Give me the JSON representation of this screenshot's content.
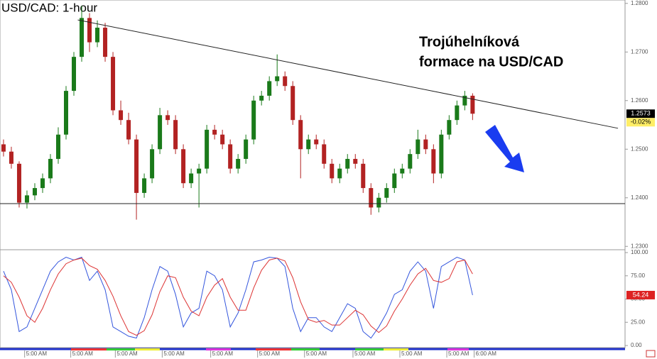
{
  "chart_data": {
    "type": "candlestick",
    "title": "USD/CAD: 1-hour",
    "annotation": [
      "Trojúhelníková",
      "formace na USD/CAD"
    ],
    "ohlc": [
      [
        1.251,
        1.252,
        1.2485,
        1.2495
      ],
      [
        1.2495,
        1.2505,
        1.246,
        1.247
      ],
      [
        1.247,
        1.2475,
        1.238,
        1.239
      ],
      [
        1.239,
        1.2415,
        1.2378,
        1.2405
      ],
      [
        1.2405,
        1.243,
        1.2395,
        1.242
      ],
      [
        1.242,
        1.245,
        1.241,
        1.244
      ],
      [
        1.244,
        1.249,
        1.243,
        1.248
      ],
      [
        1.248,
        1.2545,
        1.247,
        1.253
      ],
      [
        1.253,
        1.263,
        1.252,
        1.262
      ],
      [
        1.262,
        1.27,
        1.261,
        1.269
      ],
      [
        1.269,
        1.2795,
        1.268,
        1.277
      ],
      [
        1.277,
        1.278,
        1.27,
        1.272
      ],
      [
        1.272,
        1.2765,
        1.271,
        1.275
      ],
      [
        1.275,
        1.276,
        1.268,
        1.269
      ],
      [
        1.269,
        1.27,
        1.257,
        1.258
      ],
      [
        1.258,
        1.26,
        1.255,
        1.256
      ],
      [
        1.256,
        1.2575,
        1.251,
        1.252
      ],
      [
        1.252,
        1.253,
        1.2355,
        1.241
      ],
      [
        1.241,
        1.245,
        1.24,
        1.244
      ],
      [
        1.244,
        1.251,
        1.243,
        1.25
      ],
      [
        1.25,
        1.2585,
        1.249,
        1.257
      ],
      [
        1.257,
        1.258,
        1.255,
        1.256
      ],
      [
        1.256,
        1.257,
        1.249,
        1.25
      ],
      [
        1.25,
        1.251,
        1.242,
        1.243
      ],
      [
        1.243,
        1.246,
        1.242,
        1.245
      ],
      [
        1.245,
        1.247,
        1.238,
        1.246
      ],
      [
        1.246,
        1.255,
        1.245,
        1.254
      ],
      [
        1.254,
        1.255,
        1.252,
        1.253
      ],
      [
        1.253,
        1.254,
        1.25,
        1.251
      ],
      [
        1.251,
        1.252,
        1.245,
        1.246
      ],
      [
        1.246,
        1.249,
        1.245,
        1.248
      ],
      [
        1.248,
        1.253,
        1.247,
        1.252
      ],
      [
        1.252,
        1.261,
        1.251,
        1.26
      ],
      [
        1.26,
        1.262,
        1.259,
        1.261
      ],
      [
        1.261,
        1.265,
        1.26,
        1.264
      ],
      [
        1.264,
        1.2695,
        1.263,
        1.265
      ],
      [
        1.265,
        1.266,
        1.262,
        1.263
      ],
      [
        1.263,
        1.264,
        1.255,
        1.256
      ],
      [
        1.256,
        1.257,
        1.244,
        1.25
      ],
      [
        1.25,
        1.253,
        1.249,
        1.252
      ],
      [
        1.252,
        1.253,
        1.25,
        1.251
      ],
      [
        1.251,
        1.252,
        1.246,
        1.247
      ],
      [
        1.247,
        1.248,
        1.243,
        1.244
      ],
      [
        1.244,
        1.247,
        1.243,
        1.246
      ],
      [
        1.246,
        1.249,
        1.245,
        1.248
      ],
      [
        1.248,
        1.249,
        1.246,
        1.247
      ],
      [
        1.247,
        1.248,
        1.241,
        1.242
      ],
      [
        1.242,
        1.243,
        1.2365,
        1.238
      ],
      [
        1.238,
        1.241,
        1.237,
        1.24
      ],
      [
        1.24,
        1.243,
        1.239,
        1.242
      ],
      [
        1.242,
        1.246,
        1.241,
        1.245
      ],
      [
        1.245,
        1.247,
        1.244,
        1.246
      ],
      [
        1.246,
        1.25,
        1.245,
        1.249
      ],
      [
        1.249,
        1.254,
        1.248,
        1.252
      ],
      [
        1.252,
        1.253,
        1.249,
        1.25
      ],
      [
        1.25,
        1.251,
        1.243,
        1.245
      ],
      [
        1.245,
        1.254,
        1.244,
        1.253
      ],
      [
        1.253,
        1.257,
        1.252,
        1.256
      ],
      [
        1.256,
        1.26,
        1.255,
        1.259
      ],
      [
        1.259,
        1.262,
        1.258,
        1.261
      ],
      [
        1.261,
        1.2615,
        1.256,
        1.2573
      ]
    ],
    "up_color": "#1a7a1a",
    "down_color": "#b22222",
    "xlim": [
      -0.45,
      79.5
    ],
    "xticks": [
      {
        "value": 2.7,
        "label": "5:00 AM"
      },
      {
        "value": 8.6,
        "label": "5:00 AM"
      },
      {
        "value": 14.3,
        "label": "5:00 AM"
      },
      {
        "value": 20.3,
        "label": "5:00 AM"
      },
      {
        "value": 26.5,
        "label": "5:00 AM"
      },
      {
        "value": 32.5,
        "label": "5:00 AM"
      },
      {
        "value": 38.5,
        "label": "5:00 AM"
      },
      {
        "value": 44.7,
        "label": "5:00 AM"
      },
      {
        "value": 50.7,
        "label": "5:00 AM"
      },
      {
        "value": 56.7,
        "label": "5:00 AM"
      },
      {
        "value": 60.2,
        "label": "6:00 AM"
      }
    ],
    "ylim": [
      1.2296,
      1.2807
    ],
    "yticks": [
      {
        "value": 1.23,
        "label": "1.2300"
      },
      {
        "value": 1.24,
        "label": "1.2400"
      },
      {
        "value": 1.25,
        "label": "1.2500"
      },
      {
        "value": 1.26,
        "label": "1.2600"
      },
      {
        "value": 1.27,
        "label": "1.2700"
      },
      {
        "value": 1.28,
        "label": "1.2800"
      }
    ],
    "last_price": {
      "value": 1.2573,
      "label": "1.2573",
      "change": -0.02,
      "change_label": "-0.02%"
    },
    "resistance": {
      "x": [
        9.5,
        78.6
      ],
      "y": [
        1.2766,
        1.2543
      ]
    },
    "support": 1.2388,
    "oscillator": {
      "ylim": [
        0,
        100
      ],
      "yticks": [
        {
          "value": 0,
          "label": "0.00"
        },
        {
          "value": 25,
          "label": "25.00"
        },
        {
          "value": 50,
          "label": "50.00"
        },
        {
          "value": 75,
          "label": "75.00"
        },
        {
          "value": 100,
          "label": "100.00"
        }
      ],
      "series": [
        {
          "color": "#3355dd",
          "values": [
            80,
            60,
            15,
            20,
            40,
            60,
            80,
            90,
            95,
            92,
            95,
            70,
            80,
            60,
            20,
            15,
            10,
            8,
            30,
            60,
            85,
            80,
            55,
            20,
            35,
            40,
            80,
            75,
            60,
            20,
            35,
            60,
            90,
            92,
            95,
            94,
            85,
            40,
            15,
            30,
            30,
            20,
            15,
            30,
            45,
            40,
            15,
            8,
            20,
            35,
            55,
            60,
            80,
            90,
            80,
            40,
            85,
            90,
            95,
            92,
            54.24
          ],
          "value_labels": [
            null,
            null,
            null,
            null,
            null,
            null,
            null,
            null,
            null,
            null,
            null,
            null,
            null,
            null,
            null,
            null,
            null,
            null,
            null,
            null,
            null,
            null,
            null,
            null,
            null,
            null,
            null,
            null,
            null,
            null,
            null,
            null,
            null,
            null,
            null,
            null,
            null,
            null,
            null,
            null,
            null,
            null,
            null,
            null,
            null,
            null,
            null,
            null,
            null,
            null,
            null,
            null,
            null,
            null,
            null,
            null,
            null,
            null,
            null,
            null,
            "54.24"
          ]
        },
        {
          "color": "#dd3333",
          "values": [
            75,
            68,
            52,
            32,
            25,
            40,
            60,
            77,
            88,
            92,
            94,
            86,
            82,
            70,
            53,
            32,
            15,
            11,
            16,
            33,
            58,
            75,
            73,
            52,
            37,
            32,
            52,
            65,
            72,
            52,
            38,
            38,
            62,
            81,
            92,
            94,
            91,
            73,
            47,
            28,
            25,
            27,
            22,
            22,
            30,
            38,
            33,
            21,
            14,
            21,
            37,
            50,
            65,
            77,
            83,
            70,
            68,
            72,
            90,
            92,
            77
          ]
        }
      ]
    }
  }
}
